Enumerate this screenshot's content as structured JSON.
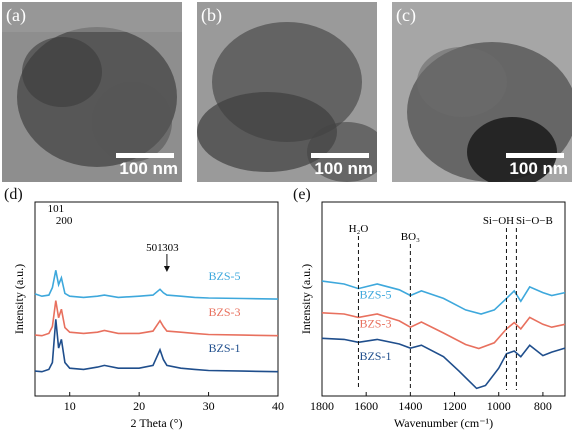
{
  "tem_panels": [
    {
      "label": "(a)",
      "scale": "100 nm"
    },
    {
      "label": "(b)",
      "scale": "100 nm"
    },
    {
      "label": "(c)",
      "scale": "100 nm"
    }
  ],
  "panel_d_label": "(d)",
  "panel_e_label": "(e)",
  "chart_data": [
    {
      "type": "line",
      "panel": "(d)",
      "xlabel": "2 Theta (°)",
      "ylabel": "Intensity (a.u.)",
      "xlim": [
        5,
        40
      ],
      "xticks": [
        "10",
        "20",
        "30",
        "40"
      ],
      "peak_annotations": [
        "101",
        "200",
        "501",
        "303"
      ],
      "series": [
        {
          "name": "BZS-5",
          "color": "#3ea8dc",
          "offset": 2,
          "points": [
            [
              5,
              0.14
            ],
            [
              6,
              0.1
            ],
            [
              7,
              0.12
            ],
            [
              7.5,
              0.25
            ],
            [
              8,
              0.55
            ],
            [
              8.4,
              0.3
            ],
            [
              8.8,
              0.42
            ],
            [
              9.3,
              0.15
            ],
            [
              10,
              0.1
            ],
            [
              12,
              0.08
            ],
            [
              14,
              0.1
            ],
            [
              15,
              0.12
            ],
            [
              17,
              0.08
            ],
            [
              20,
              0.1
            ],
            [
              22,
              0.12
            ],
            [
              23,
              0.22
            ],
            [
              23.5,
              0.16
            ],
            [
              24,
              0.12
            ],
            [
              26,
              0.1
            ],
            [
              28,
              0.08
            ],
            [
              30,
              0.07
            ],
            [
              35,
              0.06
            ],
            [
              40,
              0.05
            ]
          ]
        },
        {
          "name": "BZS-3",
          "color": "#e8705e",
          "offset": 1,
          "points": [
            [
              5,
              0.05
            ],
            [
              6,
              0.04
            ],
            [
              7,
              0.08
            ],
            [
              7.5,
              0.2
            ],
            [
              8,
              0.65
            ],
            [
              8.4,
              0.35
            ],
            [
              8.8,
              0.5
            ],
            [
              9.3,
              0.18
            ],
            [
              10,
              0.1
            ],
            [
              12,
              0.08
            ],
            [
              14,
              0.1
            ],
            [
              15,
              0.13
            ],
            [
              17,
              0.08
            ],
            [
              20,
              0.08
            ],
            [
              22,
              0.12
            ],
            [
              23,
              0.3
            ],
            [
              23.5,
              0.2
            ],
            [
              24,
              0.12
            ],
            [
              26,
              0.1
            ],
            [
              28,
              0.08
            ],
            [
              30,
              0.06
            ],
            [
              35,
              0.05
            ],
            [
              40,
              0.04
            ]
          ]
        },
        {
          "name": "BZS-1",
          "color": "#1f4e8c",
          "offset": 0,
          "points": [
            [
              5,
              0.05
            ],
            [
              6,
              0.04
            ],
            [
              7,
              0.08
            ],
            [
              7.5,
              0.2
            ],
            [
              8,
              0.95
            ],
            [
              8.4,
              0.45
            ],
            [
              8.8,
              0.6
            ],
            [
              9.3,
              0.2
            ],
            [
              10,
              0.1
            ],
            [
              12,
              0.08
            ],
            [
              14,
              0.12
            ],
            [
              15,
              0.15
            ],
            [
              17,
              0.1
            ],
            [
              20,
              0.1
            ],
            [
              22,
              0.15
            ],
            [
              23,
              0.42
            ],
            [
              23.5,
              0.25
            ],
            [
              24,
              0.15
            ],
            [
              26,
              0.1
            ],
            [
              28,
              0.08
            ],
            [
              30,
              0.06
            ],
            [
              35,
              0.05
            ],
            [
              40,
              0.04
            ]
          ]
        }
      ]
    },
    {
      "type": "line",
      "panel": "(e)",
      "xlabel": "Wavenumber (cm⁻¹)",
      "ylabel": "Intensity (a.u.)",
      "xlim": [
        1800,
        700
      ],
      "xticks": [
        "1800",
        "1600",
        "1400",
        "1200",
        "1000",
        "800"
      ],
      "band_annotations": [
        {
          "label": "H₂O",
          "x": 1635
        },
        {
          "label": "BO₃",
          "x": 1400
        },
        {
          "label": "Si−OH",
          "x": 965
        },
        {
          "label": "Si−O−B",
          "x": 920
        }
      ],
      "series": [
        {
          "name": "BZS-5",
          "color": "#3ea8dc",
          "offset": 1.7,
          "points": [
            [
              1800,
              0.55
            ],
            [
              1700,
              0.5
            ],
            [
              1635,
              0.42
            ],
            [
              1550,
              0.5
            ],
            [
              1450,
              0.4
            ],
            [
              1400,
              0.3
            ],
            [
              1350,
              0.38
            ],
            [
              1250,
              0.25
            ],
            [
              1150,
              0.05
            ],
            [
              1080,
              -0.02
            ],
            [
              1020,
              0.05
            ],
            [
              965,
              0.25
            ],
            [
              930,
              0.38
            ],
            [
              900,
              0.2
            ],
            [
              860,
              0.45
            ],
            [
              800,
              0.35
            ],
            [
              760,
              0.3
            ],
            [
              700,
              0.35
            ]
          ]
        },
        {
          "name": "BZS-3",
          "color": "#e8705e",
          "offset": 0.9,
          "points": [
            [
              1800,
              0.5
            ],
            [
              1700,
              0.48
            ],
            [
              1635,
              0.42
            ],
            [
              1550,
              0.48
            ],
            [
              1450,
              0.36
            ],
            [
              1400,
              0.25
            ],
            [
              1350,
              0.34
            ],
            [
              1250,
              0.15
            ],
            [
              1150,
              -0.05
            ],
            [
              1090,
              -0.12
            ],
            [
              1020,
              -0.02
            ],
            [
              965,
              0.22
            ],
            [
              930,
              0.33
            ],
            [
              900,
              0.22
            ],
            [
              860,
              0.42
            ],
            [
              800,
              0.3
            ],
            [
              760,
              0.25
            ],
            [
              700,
              0.3
            ]
          ]
        },
        {
          "name": "BZS-1",
          "color": "#1f4e8c",
          "offset": 0,
          "points": [
            [
              1800,
              0.62
            ],
            [
              1700,
              0.6
            ],
            [
              1635,
              0.55
            ],
            [
              1550,
              0.6
            ],
            [
              1450,
              0.52
            ],
            [
              1400,
              0.45
            ],
            [
              1350,
              0.5
            ],
            [
              1250,
              0.3
            ],
            [
              1180,
              0.05
            ],
            [
              1100,
              -0.25
            ],
            [
              1060,
              -0.2
            ],
            [
              1000,
              0.1
            ],
            [
              965,
              0.35
            ],
            [
              930,
              0.4
            ],
            [
              900,
              0.3
            ],
            [
              860,
              0.5
            ],
            [
              800,
              0.32
            ],
            [
              760,
              0.38
            ],
            [
              700,
              0.45
            ]
          ]
        }
      ]
    }
  ]
}
